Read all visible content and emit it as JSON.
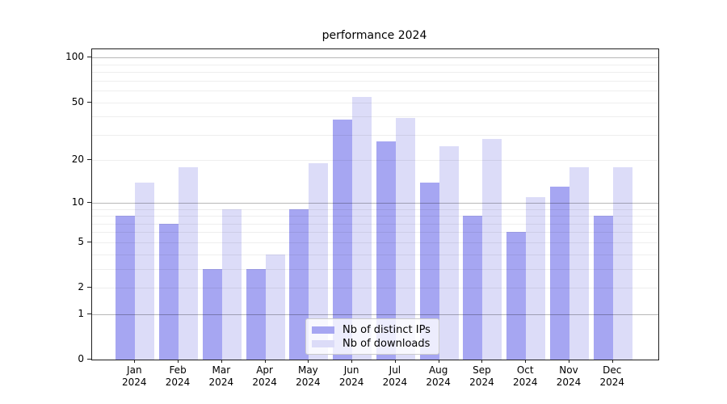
{
  "chart_data": {
    "type": "bar",
    "title": "performance 2024",
    "xlabel": "",
    "ylabel": "",
    "categories": [
      "Jan 2024",
      "Feb 2024",
      "Mar 2024",
      "Apr 2024",
      "May 2024",
      "Jun 2024",
      "Jul 2024",
      "Aug 2024",
      "Sep 2024",
      "Oct 2024",
      "Nov 2024",
      "Dec 2024"
    ],
    "series": [
      {
        "name": "Nb of distinct IPs",
        "color": "#a6a6f2",
        "values": [
          8,
          7,
          3,
          3,
          9,
          38,
          27,
          14,
          8,
          6,
          13,
          8
        ]
      },
      {
        "name": "Nb of downloads",
        "color": "#dcdcf8",
        "values": [
          14,
          18,
          9,
          4,
          19,
          54,
          39,
          25,
          28,
          11,
          18,
          18
        ]
      }
    ],
    "yscale": "log10(1+v)",
    "ylim": [
      0,
      115
    ],
    "y_tick_values": [
      0,
      1,
      2,
      5,
      10,
      20,
      50,
      100
    ],
    "y_tick_labels": [
      "0",
      "1",
      "2",
      "5",
      "10",
      "20",
      "50",
      "100"
    ],
    "major_gridline_values": [
      1,
      10,
      100
    ],
    "minor_gridline_values": [
      2,
      3,
      4,
      5,
      6,
      7,
      8,
      9,
      20,
      30,
      40,
      50,
      60,
      70,
      80,
      90
    ],
    "grid": true,
    "legend_position": "lower center",
    "colors": {
      "background": "#ffffff",
      "text": "#000000",
      "major_grid": "#b5b5b5",
      "minor_grid": "#efefef",
      "spine": "#1f1f1f"
    }
  }
}
